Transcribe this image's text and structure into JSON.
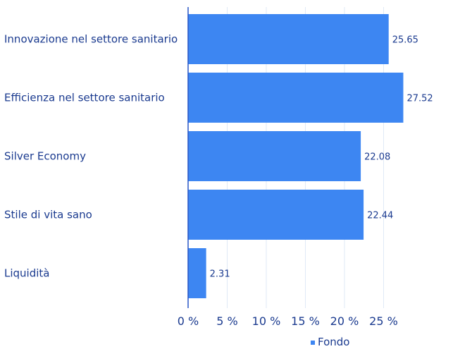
{
  "chart_data": {
    "type": "bar",
    "orientation": "horizontal",
    "categories": [
      "Innovazione nel settore sanitario",
      "Efficienza nel settore sanitario",
      "Silver Economy",
      "Stile di vita sano",
      "Liquidità"
    ],
    "series": [
      {
        "name": "Fondo",
        "values": [
          25.65,
          27.52,
          22.08,
          22.44,
          2.31
        ]
      }
    ],
    "value_labels": [
      "25.65",
      "27.52",
      "22.08",
      "22.44",
      "2.31"
    ],
    "xlim": [
      0,
      30
    ],
    "xticks": [
      0,
      5,
      10,
      15,
      20,
      25
    ],
    "xtick_labels": [
      "0 %",
      "5 %",
      "10 %",
      "15 %",
      "20 %",
      "25 %"
    ],
    "grid": true,
    "legend_position": "bottom",
    "bar_color": "#3d86f2"
  }
}
